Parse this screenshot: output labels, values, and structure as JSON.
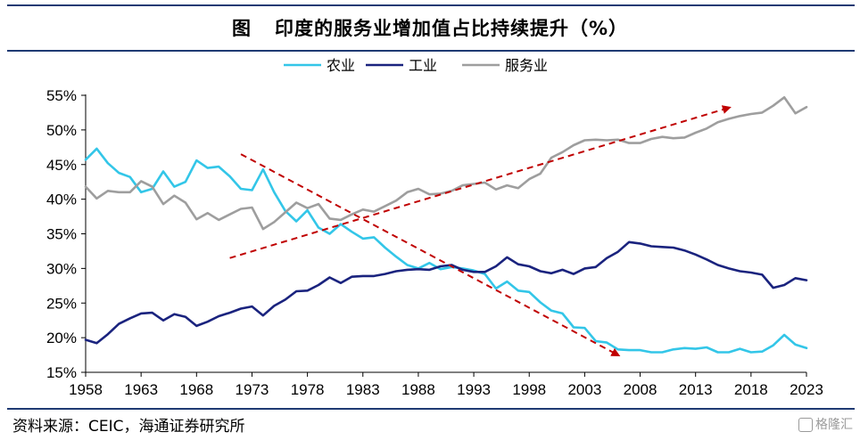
{
  "title": {
    "figure": "图",
    "text": "印度的服务业增加值占比持续提升（%）"
  },
  "source": "资料来源：CEIC，海通证券研究所",
  "watermark": "格隆汇",
  "colors": {
    "agriculture": "#33c6e8",
    "industry": "#1a237e",
    "services": "#9e9e9e",
    "arrow": "#c00000",
    "rule": "#1f3a73"
  },
  "chart_data": {
    "type": "line",
    "title": "印度的服务业增加值占比持续提升（%）",
    "xlabel": "",
    "ylabel": "",
    "x_ticks": [
      "1958",
      "1963",
      "1968",
      "1973",
      "1978",
      "1983",
      "1988",
      "1993",
      "1998",
      "2003",
      "2008",
      "2013",
      "2018",
      "2023"
    ],
    "y_ticks": [
      "15%",
      "20%",
      "25%",
      "30%",
      "35%",
      "40%",
      "45%",
      "50%",
      "55%"
    ],
    "ylim": [
      15,
      55
    ],
    "xlim": [
      1958,
      2023
    ],
    "legend_position": "top-center",
    "grid": false,
    "series": [
      {
        "name": "农业",
        "color": "#33c6e8",
        "points": [
          [
            1958,
            45.7
          ],
          [
            1959,
            47.3
          ],
          [
            1960,
            45.2
          ],
          [
            1961,
            43.8
          ],
          [
            1962,
            43.2
          ],
          [
            1963,
            41.0
          ],
          [
            1964,
            41.5
          ],
          [
            1965,
            44.0
          ],
          [
            1966,
            41.8
          ],
          [
            1967,
            42.5
          ],
          [
            1968,
            45.6
          ],
          [
            1969,
            44.5
          ],
          [
            1970,
            44.7
          ],
          [
            1971,
            43.3
          ],
          [
            1972,
            41.5
          ],
          [
            1973,
            41.3
          ],
          [
            1974,
            44.3
          ],
          [
            1975,
            41.0
          ],
          [
            1976,
            38.3
          ],
          [
            1977,
            36.8
          ],
          [
            1978,
            38.4
          ],
          [
            1979,
            35.9
          ],
          [
            1980,
            35.0
          ],
          [
            1981,
            36.4
          ],
          [
            1982,
            35.3
          ],
          [
            1983,
            34.3
          ],
          [
            1984,
            34.5
          ],
          [
            1985,
            33.0
          ],
          [
            1986,
            31.7
          ],
          [
            1987,
            30.5
          ],
          [
            1988,
            30.0
          ],
          [
            1989,
            30.8
          ],
          [
            1990,
            29.9
          ],
          [
            1991,
            30.2
          ],
          [
            1992,
            30.0
          ],
          [
            1993,
            29.7
          ],
          [
            1994,
            29.2
          ],
          [
            1995,
            27.1
          ],
          [
            1996,
            28.1
          ],
          [
            1997,
            26.8
          ],
          [
            1998,
            26.6
          ],
          [
            1999,
            25.1
          ],
          [
            2000,
            23.9
          ],
          [
            2001,
            23.5
          ],
          [
            2002,
            21.5
          ],
          [
            2003,
            21.4
          ],
          [
            2004,
            19.5
          ],
          [
            2005,
            19.3
          ],
          [
            2006,
            18.3
          ],
          [
            2007,
            18.2
          ],
          [
            2008,
            18.2
          ],
          [
            2009,
            17.9
          ],
          [
            2010,
            17.9
          ],
          [
            2011,
            18.3
          ],
          [
            2012,
            18.5
          ],
          [
            2013,
            18.4
          ],
          [
            2014,
            18.6
          ],
          [
            2015,
            17.9
          ],
          [
            2016,
            17.9
          ],
          [
            2017,
            18.4
          ],
          [
            2018,
            17.9
          ],
          [
            2019,
            18.0
          ],
          [
            2020,
            18.9
          ],
          [
            2021,
            20.4
          ],
          [
            2022,
            19.0
          ],
          [
            2023,
            18.5
          ]
        ]
      },
      {
        "name": "工业",
        "color": "#1a237e",
        "points": [
          [
            1958,
            19.7
          ],
          [
            1959,
            19.2
          ],
          [
            1960,
            20.5
          ],
          [
            1961,
            22.0
          ],
          [
            1962,
            22.8
          ],
          [
            1963,
            23.5
          ],
          [
            1964,
            23.6
          ],
          [
            1965,
            22.5
          ],
          [
            1966,
            23.4
          ],
          [
            1967,
            23.0
          ],
          [
            1968,
            21.7
          ],
          [
            1969,
            22.3
          ],
          [
            1970,
            23.1
          ],
          [
            1971,
            23.6
          ],
          [
            1972,
            24.2
          ],
          [
            1973,
            24.5
          ],
          [
            1974,
            23.2
          ],
          [
            1975,
            24.6
          ],
          [
            1976,
            25.5
          ],
          [
            1977,
            26.7
          ],
          [
            1978,
            26.8
          ],
          [
            1979,
            27.6
          ],
          [
            1980,
            28.7
          ],
          [
            1981,
            27.9
          ],
          [
            1982,
            28.8
          ],
          [
            1983,
            28.9
          ],
          [
            1984,
            28.9
          ],
          [
            1985,
            29.2
          ],
          [
            1986,
            29.6
          ],
          [
            1987,
            29.8
          ],
          [
            1988,
            29.9
          ],
          [
            1989,
            29.8
          ],
          [
            1990,
            30.3
          ],
          [
            1991,
            30.5
          ],
          [
            1992,
            29.8
          ],
          [
            1993,
            29.5
          ],
          [
            1994,
            29.5
          ],
          [
            1995,
            30.3
          ],
          [
            1996,
            31.6
          ],
          [
            1997,
            30.6
          ],
          [
            1998,
            30.3
          ],
          [
            1999,
            29.6
          ],
          [
            2000,
            29.3
          ],
          [
            2001,
            29.8
          ],
          [
            2002,
            29.2
          ],
          [
            2003,
            30.0
          ],
          [
            2004,
            30.2
          ],
          [
            2005,
            31.5
          ],
          [
            2006,
            32.4
          ],
          [
            2007,
            33.8
          ],
          [
            2008,
            33.6
          ],
          [
            2009,
            33.2
          ],
          [
            2010,
            33.1
          ],
          [
            2011,
            33.0
          ],
          [
            2012,
            32.6
          ],
          [
            2013,
            32.0
          ],
          [
            2014,
            31.3
          ],
          [
            2015,
            30.5
          ],
          [
            2016,
            30.0
          ],
          [
            2017,
            29.6
          ],
          [
            2018,
            29.4
          ],
          [
            2019,
            29.1
          ],
          [
            2020,
            27.2
          ],
          [
            2021,
            27.6
          ],
          [
            2022,
            28.6
          ],
          [
            2023,
            28.3
          ]
        ]
      },
      {
        "name": "服务业",
        "color": "#9e9e9e",
        "points": [
          [
            1958,
            41.8
          ],
          [
            1959,
            40.1
          ],
          [
            1960,
            41.2
          ],
          [
            1961,
            41.0
          ],
          [
            1962,
            41.0
          ],
          [
            1963,
            42.6
          ],
          [
            1964,
            41.8
          ],
          [
            1965,
            39.3
          ],
          [
            1966,
            40.5
          ],
          [
            1967,
            39.5
          ],
          [
            1968,
            37.1
          ],
          [
            1969,
            38.0
          ],
          [
            1970,
            37.0
          ],
          [
            1971,
            37.8
          ],
          [
            1972,
            38.6
          ],
          [
            1973,
            38.8
          ],
          [
            1974,
            35.7
          ],
          [
            1975,
            36.7
          ],
          [
            1976,
            38.1
          ],
          [
            1977,
            39.5
          ],
          [
            1978,
            38.7
          ],
          [
            1979,
            39.3
          ],
          [
            1980,
            37.2
          ],
          [
            1981,
            37.0
          ],
          [
            1982,
            37.8
          ],
          [
            1983,
            38.5
          ],
          [
            1984,
            38.2
          ],
          [
            1985,
            39.0
          ],
          [
            1986,
            39.8
          ],
          [
            1987,
            41.0
          ],
          [
            1988,
            41.5
          ],
          [
            1989,
            40.7
          ],
          [
            1990,
            40.8
          ],
          [
            1991,
            41.2
          ],
          [
            1992,
            42.0
          ],
          [
            1993,
            42.2
          ],
          [
            1994,
            42.4
          ],
          [
            1995,
            41.4
          ],
          [
            1996,
            42.0
          ],
          [
            1997,
            41.6
          ],
          [
            1998,
            42.9
          ],
          [
            1999,
            43.7
          ],
          [
            2000,
            46.0
          ],
          [
            2001,
            46.8
          ],
          [
            2002,
            47.8
          ],
          [
            2003,
            48.5
          ],
          [
            2004,
            48.6
          ],
          [
            2005,
            48.5
          ],
          [
            2006,
            48.6
          ],
          [
            2007,
            48.1
          ],
          [
            2008,
            48.1
          ],
          [
            2009,
            48.7
          ],
          [
            2010,
            49.0
          ],
          [
            2011,
            48.8
          ],
          [
            2012,
            48.9
          ],
          [
            2013,
            49.6
          ],
          [
            2014,
            50.2
          ],
          [
            2015,
            51.1
          ],
          [
            2016,
            51.6
          ],
          [
            2017,
            52.0
          ],
          [
            2018,
            52.3
          ],
          [
            2019,
            52.5
          ],
          [
            2020,
            53.5
          ],
          [
            2021,
            54.7
          ],
          [
            2022,
            52.4
          ],
          [
            2023,
            53.3
          ]
        ]
      }
    ],
    "annotations": [
      {
        "type": "trend-arrow",
        "from": [
          1972,
          46.5
        ],
        "to": [
          2006,
          17.5
        ]
      },
      {
        "type": "trend-arrow",
        "from": [
          1971,
          31.5
        ],
        "to": [
          2016,
          53.2
        ]
      }
    ]
  }
}
